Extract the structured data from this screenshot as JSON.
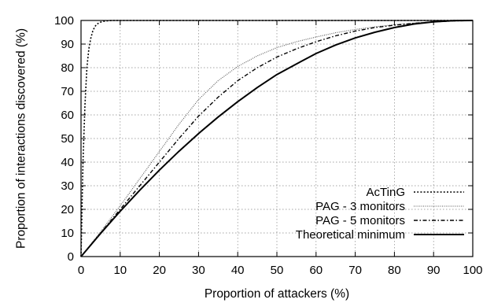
{
  "chart_data": {
    "type": "line",
    "xlabel": "Proportion of attackers (%)",
    "ylabel": "Proportion of interactions discovered (%)",
    "xlim": [
      0,
      100
    ],
    "ylim": [
      0,
      100
    ],
    "xticks": [
      0,
      10,
      20,
      30,
      40,
      50,
      60,
      70,
      80,
      90,
      100
    ],
    "yticks": [
      0,
      10,
      20,
      30,
      40,
      50,
      60,
      70,
      80,
      90,
      100
    ],
    "grid": true,
    "legend_position": "bottom-right",
    "series": [
      {
        "name": "AcTinG",
        "style": "dotted",
        "x": [
          0,
          0.5,
          1,
          1.5,
          2,
          2.5,
          3,
          3.5,
          4,
          5,
          6,
          7,
          8,
          10,
          15,
          20,
          40,
          60,
          80,
          100
        ],
        "y": [
          0,
          40,
          64,
          80,
          88,
          92.5,
          95.5,
          97.3,
          98.4,
          99.3,
          99.7,
          99.9,
          100,
          100,
          100,
          100,
          100,
          100,
          100,
          100
        ]
      },
      {
        "name": "PAG - 3 monitors",
        "style": "fine-dotted",
        "x": [
          0,
          5,
          10,
          15,
          20,
          25,
          30,
          35,
          40,
          45,
          50,
          55,
          60,
          65,
          70,
          75,
          80,
          85,
          90,
          95,
          100
        ],
        "y": [
          0,
          10.5,
          21.5,
          33,
          44.5,
          56,
          66.5,
          74.5,
          80.5,
          85,
          88.5,
          91,
          93,
          94.8,
          96.2,
          97.3,
          98.2,
          98.9,
          99.4,
          99.8,
          100
        ]
      },
      {
        "name": "PAG - 5 monitors",
        "style": "dash-dot",
        "x": [
          0,
          5,
          10,
          15,
          20,
          25,
          30,
          35,
          40,
          45,
          50,
          55,
          60,
          65,
          70,
          75,
          80,
          85,
          90,
          95,
          100
        ],
        "y": [
          0,
          10,
          20,
          30,
          40,
          50,
          59.5,
          67.5,
          74.5,
          80,
          84.5,
          88,
          91,
          93.5,
          95.5,
          97,
          98,
          98.8,
          99.4,
          99.8,
          100
        ]
      },
      {
        "name": "Theoretical minimum",
        "style": "solid",
        "x": [
          0,
          5,
          10,
          15,
          20,
          25,
          30,
          35,
          40,
          45,
          50,
          55,
          60,
          65,
          70,
          75,
          80,
          85,
          90,
          95,
          100
        ],
        "y": [
          0,
          9.8,
          19.2,
          28.1,
          36.6,
          44.6,
          52.1,
          59.1,
          65.6,
          71.6,
          77.1,
          81.6,
          86,
          89.6,
          92.6,
          95,
          97,
          98.5,
          99.4,
          99.9,
          100
        ]
      }
    ]
  }
}
